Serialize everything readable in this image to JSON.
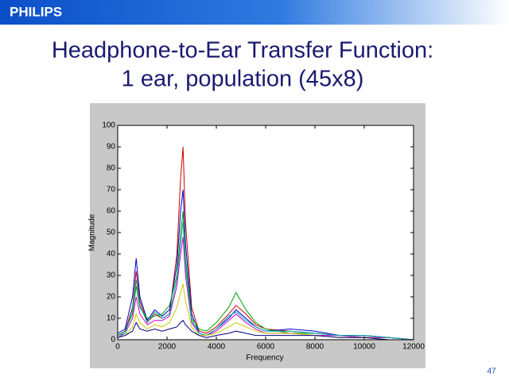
{
  "brand": "PHILIPS",
  "page_number": "47",
  "chart_data": {
    "type": "line",
    "title": [
      "Headphone-to-Ear Transfer Function:",
      "1 ear,  population (45x8)"
    ],
    "x_label": "Frequency",
    "y_label": "Magnitude",
    "xlim": [
      0,
      12000
    ],
    "ylim": [
      0,
      100
    ],
    "xticks": [
      0,
      2000,
      4000,
      6000,
      8000,
      10000,
      12000
    ],
    "yticks": [
      0,
      10,
      20,
      30,
      40,
      50,
      60,
      70,
      80,
      90,
      100
    ],
    "x": [
      0,
      300,
      600,
      750,
      900,
      1200,
      1500,
      1800,
      2100,
      2400,
      2550,
      2650,
      2750,
      3000,
      3300,
      3600,
      4000,
      4500,
      4800,
      5200,
      5600,
      6000,
      7000,
      8000,
      9000,
      10000,
      11000,
      12000
    ],
    "series": [
      {
        "color": "#cc0000",
        "values": [
          2,
          4,
          15,
          32,
          18,
          8,
          12,
          10,
          12,
          40,
          75,
          90,
          55,
          15,
          4,
          3,
          6,
          12,
          16,
          12,
          7,
          5,
          4,
          3,
          2,
          2,
          1,
          0
        ]
      },
      {
        "color": "#0000cc",
        "values": [
          3,
          5,
          20,
          38,
          20,
          9,
          14,
          11,
          14,
          35,
          60,
          70,
          45,
          12,
          3,
          2,
          5,
          10,
          14,
          10,
          6,
          4,
          5,
          4,
          2,
          2,
          1,
          0
        ]
      },
      {
        "color": "#00a000",
        "values": [
          2,
          4,
          12,
          25,
          15,
          10,
          11,
          12,
          16,
          30,
          50,
          60,
          38,
          10,
          5,
          4,
          8,
          15,
          22,
          14,
          8,
          5,
          3,
          3,
          2,
          1,
          1,
          0
        ]
      },
      {
        "color": "#cc00cc",
        "values": [
          1,
          3,
          10,
          20,
          12,
          7,
          9,
          9,
          11,
          25,
          40,
          48,
          30,
          8,
          3,
          2,
          4,
          9,
          12,
          8,
          5,
          3,
          3,
          2,
          2,
          1,
          1,
          0
        ]
      },
      {
        "color": "#00aaaa",
        "values": [
          2,
          3,
          14,
          28,
          16,
          8,
          13,
          10,
          12,
          28,
          45,
          55,
          34,
          9,
          3,
          2,
          5,
          11,
          13,
          9,
          6,
          4,
          4,
          3,
          2,
          2,
          1,
          0
        ]
      },
      {
        "color": "#c8c800",
        "values": [
          1,
          2,
          6,
          12,
          8,
          5,
          7,
          6,
          8,
          15,
          22,
          26,
          18,
          6,
          2,
          2,
          3,
          6,
          8,
          6,
          4,
          3,
          3,
          2,
          1,
          1,
          0,
          0
        ]
      },
      {
        "color": "#000080",
        "values": [
          1,
          2,
          4,
          8,
          5,
          4,
          5,
          4,
          5,
          6,
          8,
          9,
          7,
          4,
          2,
          1,
          2,
          3,
          4,
          3,
          2,
          2,
          2,
          2,
          1,
          1,
          0,
          0
        ]
      }
    ]
  }
}
